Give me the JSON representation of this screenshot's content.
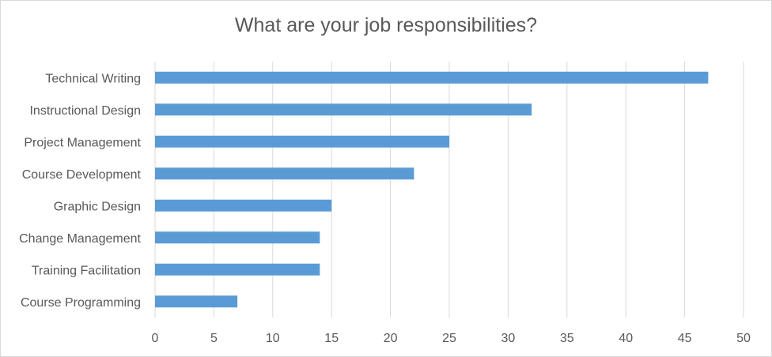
{
  "chart_data": {
    "type": "bar",
    "orientation": "horizontal",
    "title": "What are your job responsibilities?",
    "xlabel": "",
    "ylabel": "",
    "categories": [
      "Technical Writing",
      "Instructional Design",
      "Project Management",
      "Course Development",
      "Graphic Design",
      "Change Management",
      "Training Facilitation",
      "Course Programming"
    ],
    "values": [
      47,
      32,
      25,
      22,
      15,
      14,
      14,
      7
    ],
    "xlim": [
      0,
      50
    ],
    "xticks": [
      0,
      5,
      10,
      15,
      20,
      25,
      30,
      35,
      40,
      45,
      50
    ],
    "grid": "vertical",
    "legend": "none",
    "bar_color": "#5b9bd5",
    "grid_color": "#d9d9d9",
    "text_color": "#595959"
  }
}
